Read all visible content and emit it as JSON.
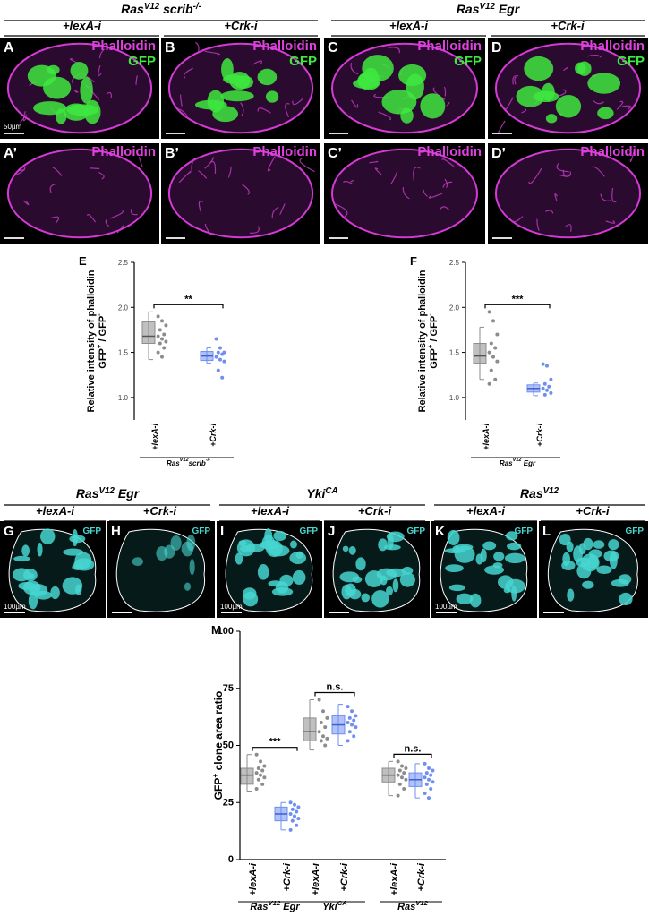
{
  "top": {
    "groups": [
      {
        "title": [
          {
            "base": "Ras",
            "sup": "V12"
          },
          {
            "base": " scrib",
            "sup": "-/-"
          }
        ],
        "conditions": [
          "+lexA-i",
          "+Crk-i"
        ]
      },
      {
        "title": [
          {
            "base": "Ras",
            "sup": "V12"
          },
          {
            "base": " Egr"
          }
        ],
        "conditions": [
          "+lexA-i",
          "+Crk-i"
        ]
      }
    ],
    "panels": [
      {
        "letter": "A",
        "labels": [
          "Phalloidin",
          "GFP"
        ],
        "scale_bar": "50µm"
      },
      {
        "letter": "B",
        "labels": [
          "Phalloidin",
          "GFP"
        ]
      },
      {
        "letter": "C",
        "labels": [
          "Phalloidin",
          "GFP"
        ]
      },
      {
        "letter": "D",
        "labels": [
          "Phalloidin",
          "GFP"
        ]
      },
      {
        "letter": "A’",
        "labels": [
          "Phalloidin"
        ]
      },
      {
        "letter": "B’",
        "labels": [
          "Phalloidin"
        ]
      },
      {
        "letter": "C’",
        "labels": [
          "Phalloidin"
        ]
      },
      {
        "letter": "D’",
        "labels": [
          "Phalloidin"
        ]
      }
    ]
  },
  "bottom": {
    "groups": [
      {
        "title": [
          {
            "base": "Ras",
            "sup": "V12"
          },
          {
            "base": " Egr"
          }
        ],
        "conditions": [
          "+lexA-i",
          "+Crk-i"
        ]
      },
      {
        "title": [
          {
            "base": "Yki",
            "sup": "CA"
          }
        ],
        "conditions": [
          "+lexA-i",
          "+Crk-i"
        ]
      },
      {
        "title": [
          {
            "base": "Ras",
            "sup": "V12"
          }
        ],
        "conditions": [
          "+lexA-i",
          "+Crk-i"
        ]
      }
    ],
    "panels": [
      {
        "letter": "G",
        "labels": [
          "GFP"
        ],
        "scale_bar": "100µm"
      },
      {
        "letter": "H",
        "labels": [
          "GFP"
        ]
      },
      {
        "letter": "I",
        "labels": [
          "GFP"
        ],
        "scale_bar": "100µm"
      },
      {
        "letter": "J",
        "labels": [
          "GFP"
        ]
      },
      {
        "letter": "K",
        "labels": [
          "GFP"
        ],
        "scale_bar": "100µm"
      },
      {
        "letter": "L",
        "labels": [
          "GFP"
        ]
      }
    ]
  },
  "chart_data": [
    {
      "type": "box",
      "panel": "E",
      "ylabel": [
        [
          {
            "base": "Relative  intensity of phalloidin"
          }
        ],
        [
          {
            "base": "GFP",
            "sup": "+"
          },
          {
            "base": " / GFP",
            "sup": "-"
          }
        ]
      ],
      "ylim": [
        0.75,
        2.5
      ],
      "yticks": [
        {
          "value": 1,
          "label": "1.0"
        },
        1.5,
        {
          "value": 2,
          "label": "2.0"
        },
        2.5
      ],
      "categories": [
        "+lexA-i",
        "+Crk-i"
      ],
      "colors": [
        "#8c8c8c",
        "#6f8ff0"
      ],
      "box": [
        [
          1.6,
          1.68,
          1.84
        ],
        [
          1.41,
          1.46,
          1.51
        ]
      ],
      "whiskers": [
        [
          1.42,
          1.95
        ],
        [
          1.38,
          1.55
        ]
      ],
      "points": [
        [
          1.9,
          1.85,
          1.8,
          1.75,
          1.7,
          1.68,
          1.65,
          1.62,
          1.6,
          1.55,
          1.5,
          1.45
        ],
        [
          1.65,
          1.55,
          1.5,
          1.5,
          1.48,
          1.45,
          1.42,
          1.4,
          1.3,
          1.22
        ]
      ],
      "groups": [
        {
          "label": [
            {
              "base": "Ras",
              "sup": "V12"
            },
            {
              "base": "scrib",
              "sup": "-/-"
            }
          ],
          "significance": "**"
        }
      ]
    },
    {
      "type": "box",
      "panel": "F",
      "ylabel": [
        [
          {
            "base": "Relative  intensity of phalloidin"
          }
        ],
        [
          {
            "base": "GFP",
            "sup": "+"
          },
          {
            "base": " / GFP",
            "sup": "-"
          }
        ]
      ],
      "ylim": [
        0.75,
        2.5
      ],
      "yticks": [
        {
          "value": 1,
          "label": "1.0"
        },
        1.5,
        {
          "value": 2,
          "label": "2.0"
        },
        2.5
      ],
      "categories": [
        "+lexA-i",
        "+Crk-i"
      ],
      "colors": [
        "#8c8c8c",
        "#6f8ff0"
      ],
      "box": [
        [
          1.38,
          1.46,
          1.6
        ],
        [
          1.06,
          1.1,
          1.14
        ]
      ],
      "whiskers": [
        [
          1.2,
          1.78
        ],
        [
          1.02,
          1.16
        ]
      ],
      "points": [
        [
          1.95,
          1.85,
          1.7,
          1.6,
          1.55,
          1.5,
          1.45,
          1.4,
          1.3,
          1.2,
          1.15
        ],
        [
          1.37,
          1.35,
          1.2,
          1.15,
          1.12,
          1.1,
          1.08,
          1.05,
          1.03
        ]
      ],
      "groups": [
        {
          "label": [
            {
              "base": "Ras",
              "sup": "V12"
            },
            {
              "base": " Egr"
            }
          ],
          "significance": "***"
        }
      ]
    },
    {
      "type": "box",
      "panel": "M",
      "ylabel": [
        [
          {
            "base": "GFP",
            "sup": "+"
          },
          {
            "base": " clone area ratio"
          }
        ]
      ],
      "ylim": [
        0,
        100
      ],
      "yticks": [
        0,
        25,
        50,
        75,
        100
      ],
      "categories": [
        "+lexA-i",
        "+Crk-i",
        "+lexA-i",
        "+Crk-i",
        "+lexA-i",
        "+Crk-i"
      ],
      "colors": [
        "#8c8c8c",
        "#6f8ff0",
        "#8c8c8c",
        "#6f8ff0",
        "#8c8c8c",
        "#6f8ff0"
      ],
      "box": [
        [
          33,
          37,
          40
        ],
        [
          17,
          20,
          23
        ],
        [
          52,
          56,
          62
        ],
        [
          55,
          59,
          63
        ],
        [
          34,
          37,
          40
        ],
        [
          32,
          35,
          38
        ]
      ],
      "whiskers": [
        [
          30,
          46
        ],
        [
          13,
          25
        ],
        [
          48,
          70
        ],
        [
          50,
          68
        ],
        [
          28,
          43
        ],
        [
          27,
          42
        ]
      ],
      "points": [
        [
          46,
          43,
          41,
          40,
          39,
          38,
          37,
          36,
          35,
          33,
          31
        ],
        [
          25,
          24,
          23,
          22,
          21,
          20,
          19,
          18,
          17,
          15,
          13
        ],
        [
          70,
          65,
          62,
          60,
          58,
          56,
          54,
          53,
          52,
          50
        ],
        [
          67,
          65,
          63,
          62,
          61,
          60,
          59,
          58,
          56,
          54,
          52
        ],
        [
          43,
          41,
          40,
          39,
          38,
          37,
          36,
          35,
          33,
          31,
          28
        ],
        [
          42,
          40,
          39,
          38,
          37,
          36,
          35,
          34,
          33,
          31,
          29,
          27
        ]
      ],
      "groups": [
        {
          "label": [
            {
              "base": "Ras",
              "sup": "V12"
            },
            {
              "base": " Egr"
            }
          ],
          "significance": "***"
        },
        {
          "label": [
            {
              "base": "Yki",
              "sup": "CA"
            }
          ],
          "significance": "n.s."
        },
        {
          "label": [
            {
              "base": "Ras",
              "sup": "V12"
            }
          ],
          "significance": "n.s."
        }
      ]
    }
  ]
}
